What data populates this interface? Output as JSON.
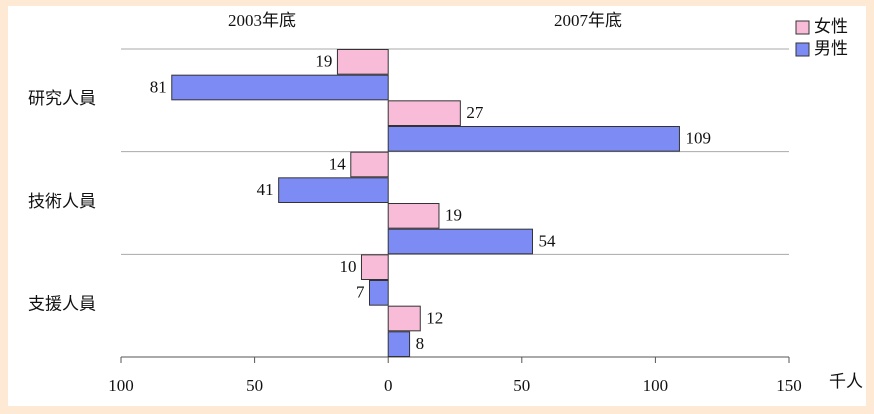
{
  "chart_data": {
    "type": "butterfly-bar",
    "column_labels": [
      "2003年底",
      "2007年底"
    ],
    "categories": [
      "研究人員",
      "技術人員",
      "支援人員"
    ],
    "series": [
      {
        "name": "女性",
        "color": "#f8bcd8",
        "values": [
          [
            -19,
            27
          ],
          [
            -14,
            19
          ],
          [
            -10,
            12
          ]
        ],
        "value_labels": [
          [
            "19",
            "27"
          ],
          [
            "14",
            "19"
          ],
          [
            "10",
            "12"
          ]
        ]
      },
      {
        "name": "男性",
        "color": "#7c8cf4",
        "values": [
          [
            -81,
            109
          ],
          [
            -41,
            54
          ],
          [
            -7,
            8
          ]
        ],
        "value_labels": [
          [
            "81",
            "109"
          ],
          [
            "41",
            "54"
          ],
          [
            "7",
            "8"
          ]
        ]
      }
    ],
    "xlabel": "千人",
    "xlim": [
      -100,
      150
    ],
    "xticks": [
      {
        "value": -100,
        "label": "100"
      },
      {
        "value": -50,
        "label": "50"
      },
      0,
      50,
      100,
      150
    ],
    "legend": "top-right"
  }
}
